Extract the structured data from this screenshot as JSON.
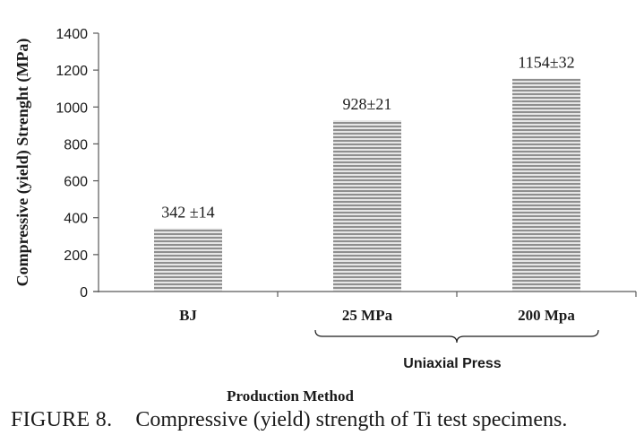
{
  "chart_data": {
    "type": "bar",
    "categories": [
      "BJ",
      "25 MPa",
      "200 Mpa"
    ],
    "values": [
      342,
      928,
      1154
    ],
    "data_labels": [
      "342 ±14",
      "928±21",
      "1154±32"
    ],
    "ylabel": "Compressive (yield) Strenght (MPa)",
    "xlabel": "Production Method",
    "group_label": "Uniaxial Press",
    "ylim": [
      0,
      1400
    ],
    "yticks": [
      0,
      200,
      400,
      600,
      800,
      1000,
      1200,
      1400
    ],
    "grid": false,
    "legend": "none",
    "bar_pattern": "horizontal-stripes",
    "colors": {
      "bar_stripe_dark": "#8f8f8f",
      "bar_stripe_light": "#e6e6e6",
      "axis": "#595959",
      "text": "#1a1a1a"
    }
  },
  "caption": {
    "label": "FIGURE 8.",
    "text": "Compressive (yield) strength of Ti test specimens."
  }
}
